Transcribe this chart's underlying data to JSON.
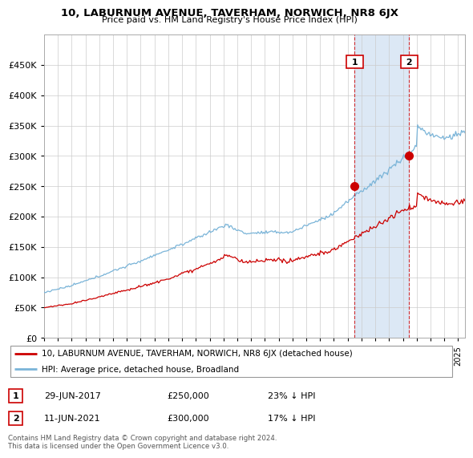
{
  "title": "10, LABURNUM AVENUE, TAVERHAM, NORWICH, NR8 6JX",
  "subtitle": "Price paid vs. HM Land Registry's House Price Index (HPI)",
  "legend_line1": "10, LABURNUM AVENUE, TAVERHAM, NORWICH, NR8 6JX (detached house)",
  "legend_line2": "HPI: Average price, detached house, Broadland",
  "sale1_label": "1",
  "sale1_date": "29-JUN-2017",
  "sale1_price": "£250,000",
  "sale1_hpi": "23% ↓ HPI",
  "sale2_label": "2",
  "sale2_date": "11-JUN-2021",
  "sale2_price": "£300,000",
  "sale2_hpi": "17% ↓ HPI",
  "footer": "Contains HM Land Registry data © Crown copyright and database right 2024.\nThis data is licensed under the Open Government Licence v3.0.",
  "hpi_color": "#7ab4d8",
  "price_color": "#cc0000",
  "sale1_x": 2017.5,
  "sale2_x": 2021.45,
  "sale1_y": 250000,
  "sale2_y": 300000,
  "ylim": [
    0,
    500000
  ],
  "xlim_start": 1995.0,
  "xlim_end": 2025.5,
  "highlight_color": "#dce8f5"
}
